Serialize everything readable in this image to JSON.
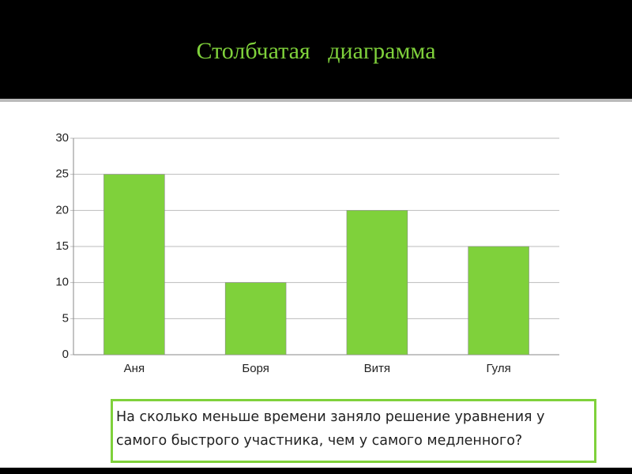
{
  "chart_data": {
    "type": "bar",
    "title": "Столбчатая   диаграмма",
    "categories": [
      "Аня",
      "Боря",
      "Витя",
      "Гуля"
    ],
    "values": [
      25,
      10,
      20,
      15
    ],
    "color": "#7fd13b",
    "ylim": [
      0,
      30
    ],
    "yticks": [
      0,
      5,
      10,
      15,
      20,
      25,
      30
    ],
    "grid": true,
    "question": "На сколько меньше времени заняло решение  уравнения у самого быстрого участника, чем у самого медленного?"
  }
}
